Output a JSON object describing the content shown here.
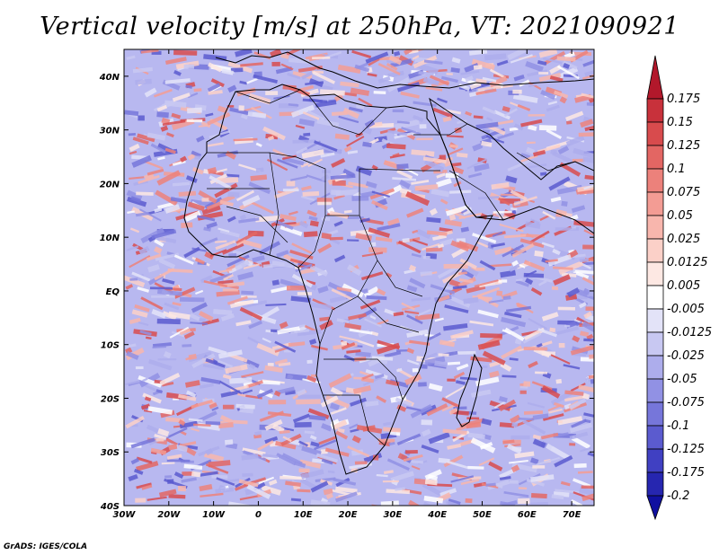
{
  "title": "Vertical velocity [m/s] at 250hPa, VT: 2021090921",
  "credit": "GrADS: IGES/COLA",
  "map": {
    "lon_range": [
      -30,
      75
    ],
    "lat_range": [
      -40,
      45
    ],
    "lon_ticks": [
      {
        "value": -30,
        "label": "30W"
      },
      {
        "value": -20,
        "label": "20W"
      },
      {
        "value": -10,
        "label": "10W"
      },
      {
        "value": 0,
        "label": "0"
      },
      {
        "value": 10,
        "label": "10E"
      },
      {
        "value": 20,
        "label": "20E"
      },
      {
        "value": 30,
        "label": "30E"
      },
      {
        "value": 40,
        "label": "40E"
      },
      {
        "value": 50,
        "label": "50E"
      },
      {
        "value": 60,
        "label": "60E"
      },
      {
        "value": 70,
        "label": "70E"
      }
    ],
    "lat_ticks": [
      {
        "value": 40,
        "label": "40N"
      },
      {
        "value": 30,
        "label": "30N"
      },
      {
        "value": 20,
        "label": "20N"
      },
      {
        "value": 10,
        "label": "10N"
      },
      {
        "value": 0,
        "label": "EQ"
      },
      {
        "value": -10,
        "label": "10S"
      },
      {
        "value": -20,
        "label": "20S"
      },
      {
        "value": -30,
        "label": "30S"
      },
      {
        "value": -40,
        "label": "40S"
      }
    ]
  },
  "colorbar": {
    "labels": [
      "0.175",
      "0.15",
      "0.125",
      "0.1",
      "0.075",
      "0.05",
      "0.025",
      "0.0125",
      "0.005",
      "-0.005",
      "-0.0125",
      "-0.025",
      "-0.05",
      "-0.075",
      "-0.1",
      "-0.125",
      "-0.175",
      "-0.2"
    ],
    "colors": [
      "#b2182b",
      "#c8313b",
      "#d84b4d",
      "#e36663",
      "#ec817b",
      "#f39c94",
      "#f8b6ad",
      "#fbd0c8",
      "#fde8e3",
      "#ffffff",
      "#e3e3f8",
      "#c8c8f2",
      "#adadec",
      "#9191e4",
      "#7676da",
      "#5b5bcf",
      "#4040c2",
      "#2626b0",
      "#1010a0"
    ]
  }
}
